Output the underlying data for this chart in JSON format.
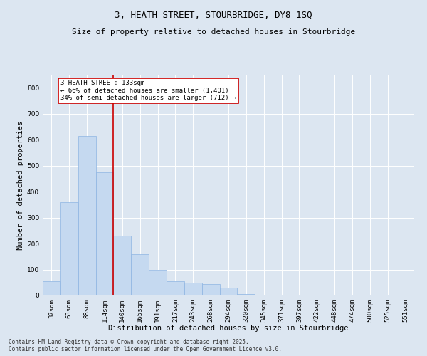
{
  "title_line1": "3, HEATH STREET, STOURBRIDGE, DY8 1SQ",
  "title_line2": "Size of property relative to detached houses in Stourbridge",
  "xlabel": "Distribution of detached houses by size in Stourbridge",
  "ylabel": "Number of detached properties",
  "bar_color": "#c5d9f0",
  "bar_edge_color": "#8db4e2",
  "bar_width": 1.0,
  "categories": [
    "37sqm",
    "63sqm",
    "88sqm",
    "114sqm",
    "140sqm",
    "165sqm",
    "191sqm",
    "217sqm",
    "243sqm",
    "268sqm",
    "294sqm",
    "320sqm",
    "345sqm",
    "371sqm",
    "397sqm",
    "422sqm",
    "448sqm",
    "474sqm",
    "500sqm",
    "525sqm",
    "551sqm"
  ],
  "values": [
    55,
    360,
    615,
    475,
    230,
    160,
    100,
    55,
    50,
    45,
    30,
    5,
    2,
    1,
    0,
    0,
    1,
    0,
    0,
    0,
    0
  ],
  "ylim": [
    0,
    850
  ],
  "yticks": [
    0,
    100,
    200,
    300,
    400,
    500,
    600,
    700,
    800
  ],
  "annotation_text": "3 HEATH STREET: 133sqm\n← 66% of detached houses are smaller (1,401)\n34% of semi-detached houses are larger (712) →",
  "annotation_box_facecolor": "#ffffff",
  "annotation_box_edgecolor": "#cc0000",
  "vline_color": "#cc0000",
  "vline_x": 3.5,
  "background_color": "#dce6f1",
  "plot_bg_color": "#dce6f1",
  "footer_line1": "Contains HM Land Registry data © Crown copyright and database right 2025.",
  "footer_line2": "Contains public sector information licensed under the Open Government Licence v3.0.",
  "grid_color": "#ffffff",
  "title1_fontsize": 9,
  "title2_fontsize": 8,
  "tick_fontsize": 6.5,
  "axis_label_fontsize": 7.5,
  "annotation_fontsize": 6.5,
  "footer_fontsize": 5.5
}
